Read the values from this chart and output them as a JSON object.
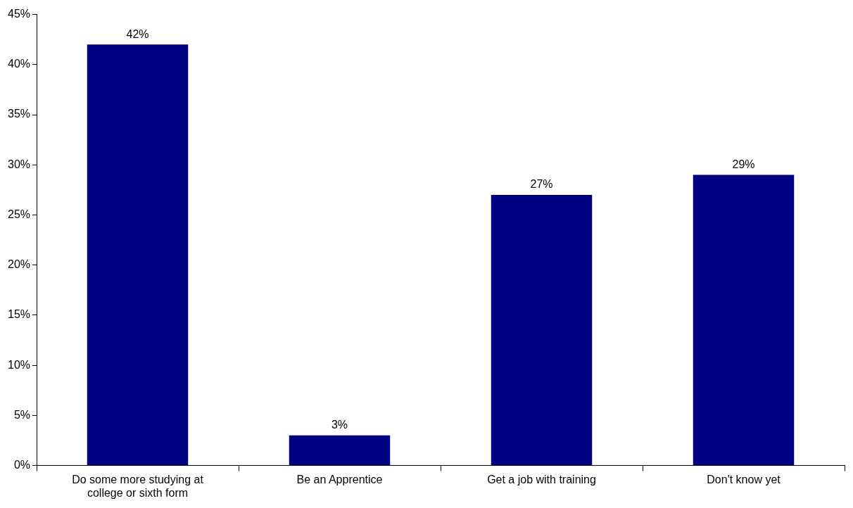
{
  "chart_data": {
    "type": "bar",
    "categories": [
      "Do some more studying at college or sixth form",
      "Be an Apprentice",
      "Get a job with training",
      "Don't know yet"
    ],
    "values": [
      42,
      3,
      27,
      29
    ],
    "color": "#000080",
    "value_labels": [
      "42%",
      "3%",
      "27%",
      "29%"
    ],
    "ylim": [
      0,
      45
    ],
    "yticks": [
      {
        "value": 0,
        "label": "0%"
      },
      {
        "value": 5,
        "label": "5%"
      },
      {
        "value": 10,
        "label": "10%"
      },
      {
        "value": 15,
        "label": "15%"
      },
      {
        "value": 20,
        "label": "20%"
      },
      {
        "value": 25,
        "label": "25%"
      },
      {
        "value": 30,
        "label": "30%"
      },
      {
        "value": 35,
        "label": "35%"
      },
      {
        "value": 40,
        "label": "40%"
      },
      {
        "value": 45,
        "label": "45%"
      }
    ],
    "grid": false,
    "legend": false
  }
}
